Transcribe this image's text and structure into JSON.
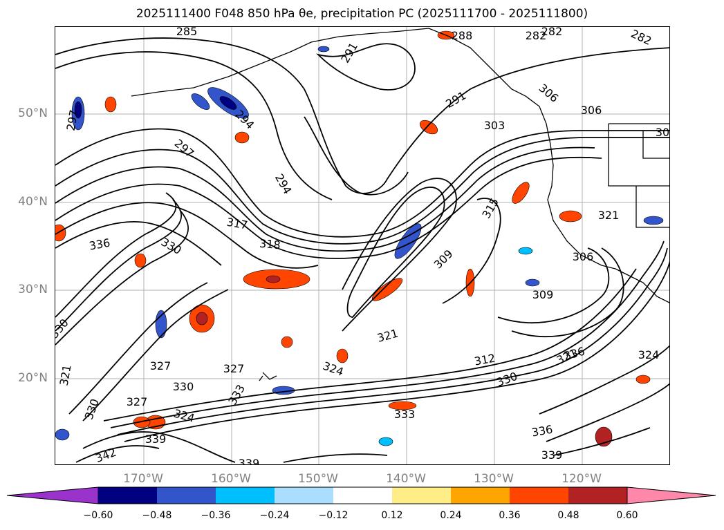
{
  "title": "2025111400 F048 850 hPa θe, precipitation PC (2025111700 - 2025111800)",
  "latitude_labels": [
    "50°N",
    "40°N",
    "30°N",
    "20°N"
  ],
  "longitude_labels": [
    "170°W",
    "160°W",
    "150°W",
    "140°W",
    "130°W",
    "120°W"
  ],
  "colorbar": {
    "ticks": [
      "−0.60",
      "−0.48",
      "−0.36",
      "−0.24",
      "−0.12",
      "0.12",
      "0.24",
      "0.36",
      "0.48",
      "0.60"
    ],
    "colors": [
      "#9933cc",
      "#000080",
      "#3355cc",
      "#00bfff",
      "#aadeff",
      "#ffffff",
      "#ffee88",
      "#ffa500",
      "#ff4500",
      "#b22222",
      "#ff88aa"
    ]
  },
  "contour_labels": [
    "285",
    "288",
    "282",
    "282",
    "282",
    "291",
    "291",
    "294",
    "294",
    "297",
    "297",
    "303",
    "306",
    "306",
    "306",
    "309",
    "309",
    "312",
    "315",
    "317",
    "318",
    "321",
    "321",
    "321",
    "324",
    "324",
    "324",
    "327",
    "327",
    "327",
    "330",
    "330",
    "330",
    "330",
    "330",
    "333",
    "333",
    "336",
    "336",
    "336",
    "339",
    "339",
    "339",
    "342",
    "321",
    "30"
  ],
  "colors": {
    "frame": "#000000",
    "grid": "#b0b0b0",
    "axis_label": "#808080"
  }
}
